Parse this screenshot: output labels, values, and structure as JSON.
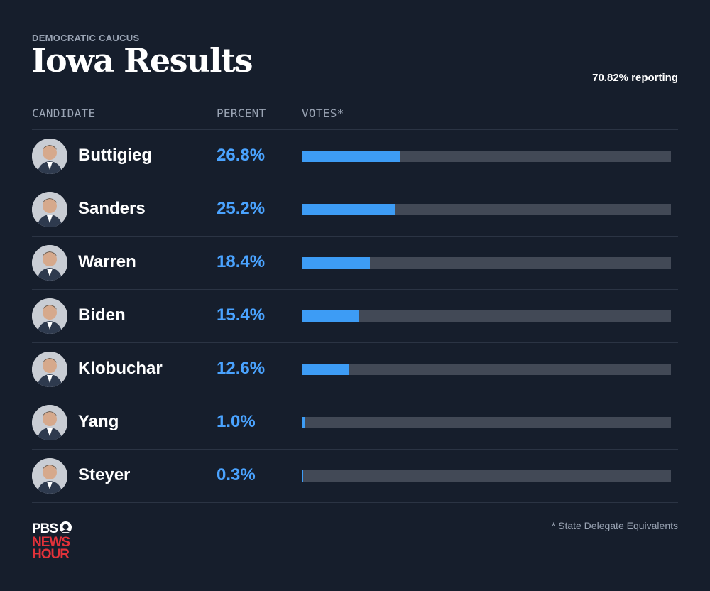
{
  "header": {
    "eyebrow": "DEMOCRATIC CAUCUS",
    "title": "Iowa Results",
    "reporting": "70.82% reporting"
  },
  "columns": {
    "candidate": "CANDIDATE",
    "percent": "PERCENT",
    "votes": "VOTES*"
  },
  "colors": {
    "background": "#161e2c",
    "bar_fill": "#3d9cf5",
    "bar_track": "#424956",
    "percent_text": "#4aa3ff",
    "logo_red": "#e2323a"
  },
  "chart_data": {
    "type": "bar",
    "orientation": "horizontal",
    "title": "Iowa Results",
    "subtitle": "DEMOCRATIC CAUCUS",
    "categories": [
      "Buttigieg",
      "Sanders",
      "Warren",
      "Biden",
      "Klobuchar",
      "Yang",
      "Steyer"
    ],
    "values": [
      26.8,
      25.2,
      18.4,
      15.4,
      12.6,
      1.0,
      0.3
    ],
    "value_labels": [
      "26.8%",
      "25.2%",
      "18.4%",
      "15.4%",
      "12.6%",
      "1.0%",
      "0.3%"
    ],
    "xlim": [
      0,
      100
    ],
    "xlabel": "VOTES*",
    "unit": "%"
  },
  "candidates": [
    {
      "name": "Buttigieg",
      "percent": "26.8%",
      "value": 26.8,
      "icon": "candidate-portrait-icon"
    },
    {
      "name": "Sanders",
      "percent": "25.2%",
      "value": 25.2,
      "icon": "candidate-portrait-icon"
    },
    {
      "name": "Warren",
      "percent": "18.4%",
      "value": 18.4,
      "icon": "candidate-portrait-icon"
    },
    {
      "name": "Biden",
      "percent": "15.4%",
      "value": 15.4,
      "icon": "candidate-portrait-icon"
    },
    {
      "name": "Klobuchar",
      "percent": "12.6%",
      "value": 12.6,
      "icon": "candidate-portrait-icon"
    },
    {
      "name": "Yang",
      "percent": "1.0%",
      "value": 1.0,
      "icon": "candidate-portrait-icon"
    },
    {
      "name": "Steyer",
      "percent": "0.3%",
      "value": 0.3,
      "icon": "candidate-portrait-icon"
    }
  ],
  "footer": {
    "footnote": "* State Delegate Equivalents",
    "logo_line1": "PBS",
    "logo_line2": "NEWS",
    "logo_line3": "HOUR"
  }
}
